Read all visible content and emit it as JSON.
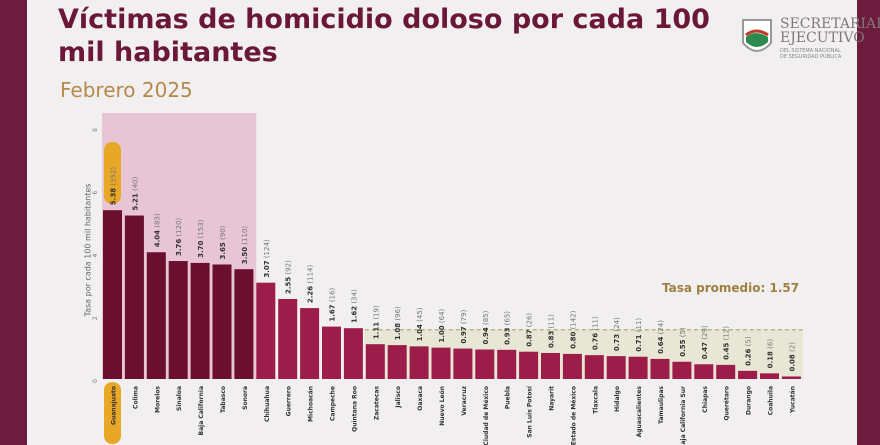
{
  "title": "Víctimas de homicidio doloso por cada 100 mil habitantes",
  "subtitle": "Febrero 2025",
  "logo": {
    "line1": "SECRETARIADO",
    "line2": "EJECUTIVO",
    "small1": "DEL SISTEMA NACIONAL",
    "small2": "DE SEGURIDAD PÚBLICA"
  },
  "colors": {
    "dark": "#6b0f2e",
    "main": "#9c1d4a",
    "highlight": "#e9a726",
    "avg_band": "#e8e6d4",
    "top_band": "#e7c5d4"
  },
  "chart_data": {
    "type": "bar",
    "title": "Víctimas de homicidio doloso por cada 100 mil habitantes",
    "ylabel": "Tasa por cada 100 mil habitantes",
    "ylim": [
      0,
      8
    ],
    "yticks": [
      "0",
      "2",
      "4",
      "6",
      "8"
    ],
    "average": 1.57,
    "average_label": "Tasa promedio: 1.57",
    "categories": [
      "Guanajuato",
      "Colima",
      "Morelos",
      "Sinaloa",
      "Baja California",
      "Tabasco",
      "Sonora",
      "Chihuahua",
      "Guerrero",
      "Michoacán",
      "Campeche",
      "Quintana Roo",
      "Zacatecas",
      "Jalisco",
      "Oaxaca",
      "Nuevo León",
      "Veracruz",
      "Ciudad de México",
      "Puebla",
      "San Luis Potosí",
      "Nayarit",
      "Estado de México",
      "Tlaxcala",
      "Hidalgo",
      "Aguascalientes",
      "Tamaulipas",
      "Baja California Sur",
      "Chiapas",
      "Querétaro",
      "Durango",
      "Coahuila",
      "Yucatán"
    ],
    "values": [
      5.38,
      5.21,
      4.04,
      3.76,
      3.7,
      3.65,
      3.5,
      3.07,
      2.55,
      2.26,
      1.67,
      1.62,
      1.11,
      1.08,
      1.04,
      1.0,
      0.97,
      0.94,
      0.93,
      0.87,
      0.83,
      0.8,
      0.76,
      0.73,
      0.71,
      0.64,
      0.55,
      0.47,
      0.45,
      0.26,
      0.18,
      0.08
    ],
    "victims": [
      352,
      40,
      83,
      120,
      153,
      90,
      110,
      124,
      92,
      114,
      16,
      34,
      19,
      96,
      45,
      64,
      79,
      85,
      65,
      26,
      11,
      142,
      11,
      24,
      11,
      24,
      5,
      29,
      12,
      5,
      6,
      2
    ]
  }
}
